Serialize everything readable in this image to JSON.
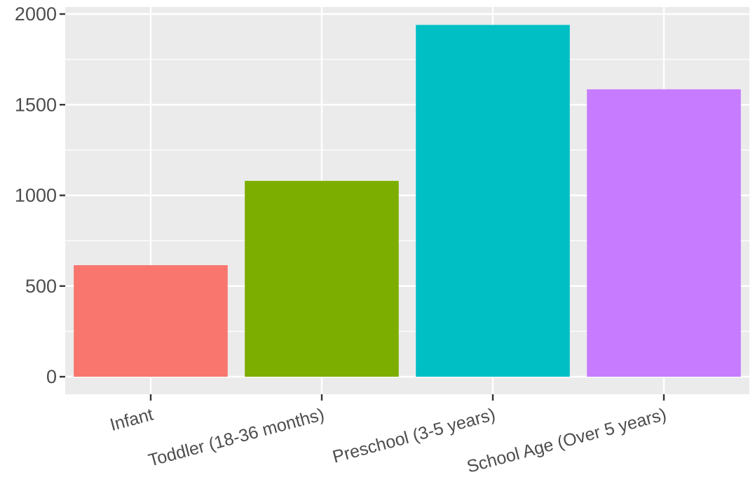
{
  "chart_data": {
    "type": "bar",
    "categories": [
      "Infant",
      "Toddler (18-36 months)",
      "Preschool (3-5 years)",
      "School Age (Over 5 years)"
    ],
    "values": [
      615,
      1080,
      1940,
      1585
    ],
    "colors": [
      "#F8766D",
      "#7CAE00",
      "#00BFC4",
      "#C77CFF"
    ],
    "y_ticks": [
      0,
      500,
      1000,
      1500,
      2000
    ],
    "y_tick_labels": [
      "0",
      "500",
      "1000",
      "1500",
      "2000"
    ],
    "ylim": [
      0,
      2000
    ],
    "grid": true,
    "legend": "none",
    "panel_background": "#EBEBEB",
    "grid_color": "#FFFFFF",
    "axis_text_color": "#4D4D4D",
    "x_tick_label_rotation_deg": -15
  }
}
